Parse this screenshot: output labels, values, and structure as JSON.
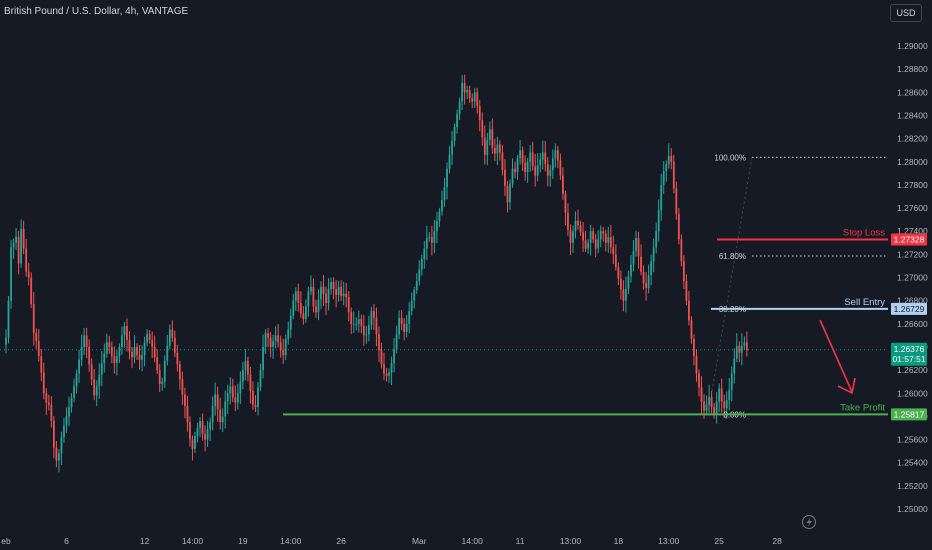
{
  "header": {
    "title": "British Pound / U.S. Dollar, 4h, VANTAGE",
    "currency_button": "USD"
  },
  "colors": {
    "background": "#161a25",
    "bull": "#26a69a",
    "bear": "#ef5350",
    "stop_loss": "#f23645",
    "sell_entry": "#b2d1ee",
    "take_profit": "#4caf50",
    "arrow": "#f23645"
  },
  "chart_data": {
    "type": "candlestick",
    "ylim": [
      1.25,
      1.292
    ],
    "y_ticks": [
      "1.29000",
      "1.28800",
      "1.28600",
      "1.28400",
      "1.28200",
      "1.28000",
      "1.27800",
      "1.27600",
      "1.27400",
      "1.27200",
      "1.27000",
      "1.26800",
      "1.26600",
      "1.26400",
      "1.26200",
      "1.26000",
      "1.25800",
      "1.25600",
      "1.25400",
      "1.25200",
      "1.25000"
    ],
    "x_ticks": [
      {
        "label": "eb",
        "i": 0
      },
      {
        "label": "6",
        "i": 24
      },
      {
        "label": "12",
        "i": 55
      },
      {
        "label": "14:00",
        "i": 74
      },
      {
        "label": "19",
        "i": 94
      },
      {
        "label": "14:00",
        "i": 113
      },
      {
        "label": "26",
        "i": 133
      },
      {
        "label": "Mar",
        "i": 164
      },
      {
        "label": "14:00",
        "i": 185
      },
      {
        "label": "11",
        "i": 204
      },
      {
        "label": "13:00",
        "i": 224
      },
      {
        "label": "18",
        "i": 243
      },
      {
        "label": "13:00",
        "i": 263
      },
      {
        "label": "25",
        "i": 283
      },
      {
        "label": "28",
        "i": 306
      }
    ],
    "closes": [
      1.2648,
      1.268,
      1.2726,
      1.273,
      1.2735,
      1.2712,
      1.2742,
      1.2725,
      1.2705,
      1.27,
      1.2677,
      1.2652,
      1.2645,
      1.2632,
      1.2618,
      1.26,
      1.2592,
      1.259,
      1.2576,
      1.2553,
      1.2542,
      1.2548,
      1.2562,
      1.2572,
      1.258,
      1.2588,
      1.2596,
      1.2606,
      1.2617,
      1.2629,
      1.264,
      1.265,
      1.264,
      1.2625,
      1.2612,
      1.2598,
      1.2606,
      1.2616,
      1.2626,
      1.2634,
      1.2644,
      1.264,
      1.2632,
      1.2626,
      1.2632,
      1.264,
      1.265,
      1.2658,
      1.2646,
      1.2636,
      1.2631,
      1.264,
      1.2633,
      1.2629,
      1.2633,
      1.2644,
      1.2651,
      1.2646,
      1.264,
      1.2631,
      1.262,
      1.2608,
      1.261,
      1.2628,
      1.2641,
      1.2655,
      1.2648,
      1.2635,
      1.2625,
      1.2612,
      1.2599,
      1.2589,
      1.2575,
      1.256,
      1.2552,
      1.2563,
      1.257,
      1.2576,
      1.2565,
      1.256,
      1.2569,
      1.2575,
      1.2589,
      1.2599,
      1.2586,
      1.2575,
      1.258,
      1.2593,
      1.26,
      1.2606,
      1.2596,
      1.2592,
      1.26,
      1.261,
      1.262,
      1.2628,
      1.2616,
      1.2602,
      1.259,
      1.2588,
      1.2605,
      1.262,
      1.264,
      1.2652,
      1.2648,
      1.264,
      1.2645,
      1.265,
      1.2644,
      1.2637,
      1.2633,
      1.2647,
      1.2655,
      1.2667,
      1.268,
      1.2688,
      1.2678,
      1.2669,
      1.2664,
      1.2675,
      1.2688,
      1.2692,
      1.2675,
      1.267,
      1.2681,
      1.2692,
      1.2686,
      1.2678,
      1.269,
      1.2696,
      1.269,
      1.2685,
      1.2692,
      1.2684,
      1.2686,
      1.2683,
      1.267,
      1.266,
      1.266,
      1.266,
      1.2664,
      1.2658,
      1.265,
      1.2651,
      1.2659,
      1.2671,
      1.2665,
      1.2651,
      1.2637,
      1.2625,
      1.2617,
      1.2615,
      1.2618,
      1.2626,
      1.2638,
      1.2651,
      1.2665,
      1.266,
      1.2653,
      1.266,
      1.2671,
      1.268,
      1.2689,
      1.2697,
      1.2707,
      1.2716,
      1.2725,
      1.2734,
      1.2735,
      1.273,
      1.274,
      1.2749,
      1.2757,
      1.2767,
      1.2778,
      1.2794,
      1.2806,
      1.2818,
      1.283,
      1.2841,
      1.2852,
      1.2868,
      1.286,
      1.2862,
      1.2855,
      1.2852,
      1.286,
      1.2848,
      1.2836,
      1.2821,
      1.2806,
      1.2819,
      1.2828,
      1.2812,
      1.2807,
      1.2815,
      1.2808,
      1.2793,
      1.2779,
      1.2765,
      1.2781,
      1.2794,
      1.2791,
      1.2803,
      1.281,
      1.2799,
      1.2791,
      1.28,
      1.2808,
      1.2796,
      1.2788,
      1.2797,
      1.2802,
      1.2808,
      1.2798,
      1.2788,
      1.2793,
      1.2803,
      1.281,
      1.2801,
      1.2788,
      1.2772,
      1.2756,
      1.2741,
      1.273,
      1.274,
      1.2749,
      1.2745,
      1.2739,
      1.2732,
      1.2725,
      1.273,
      1.274,
      1.2733,
      1.2725,
      1.2733,
      1.274,
      1.2738,
      1.273,
      1.2735,
      1.2726,
      1.272,
      1.2709,
      1.2699,
      1.269,
      1.268,
      1.269,
      1.2701,
      1.2711,
      1.2723,
      1.2734,
      1.2718,
      1.2705,
      1.2695,
      1.2691,
      1.2702,
      1.2714,
      1.2726,
      1.274,
      1.2758,
      1.278,
      1.2792,
      1.2798,
      1.2805,
      1.28,
      1.2777,
      1.2755,
      1.2733,
      1.2714,
      1.2697,
      1.268,
      1.2663,
      1.2647,
      1.2632,
      1.2617,
      1.2605,
      1.2593,
      1.2585,
      1.259,
      1.2597,
      1.2588,
      1.2582,
      1.2593,
      1.2604,
      1.2593,
      1.2587,
      1.2594,
      1.2603,
      1.2617,
      1.263,
      1.2641,
      1.2635,
      1.2641,
      1.2644,
      1.2637
    ],
    "fibonacci": [
      {
        "label": "100.00%",
        "value": 1.28038
      },
      {
        "label": "61.80%",
        "value": 1.27186
      },
      {
        "label": "38.20%",
        "value": 1.26729
      },
      {
        "label": "0.00%",
        "value": 1.25817
      }
    ],
    "levels": [
      {
        "name": "Stop Loss",
        "value_label": "1.27328",
        "value": 1.27328,
        "color": "#f23645"
      },
      {
        "name": "Sell Entry",
        "value_label": "1.26729",
        "value": 1.26729,
        "color": "#b2d1ee"
      },
      {
        "name": "Take Profit",
        "value_label": "1.25817",
        "value": 1.25817,
        "color": "#4caf50"
      }
    ],
    "current_price": {
      "value": 1.26376,
      "value_label": "1.26376",
      "countdown": "01:57:51"
    }
  }
}
